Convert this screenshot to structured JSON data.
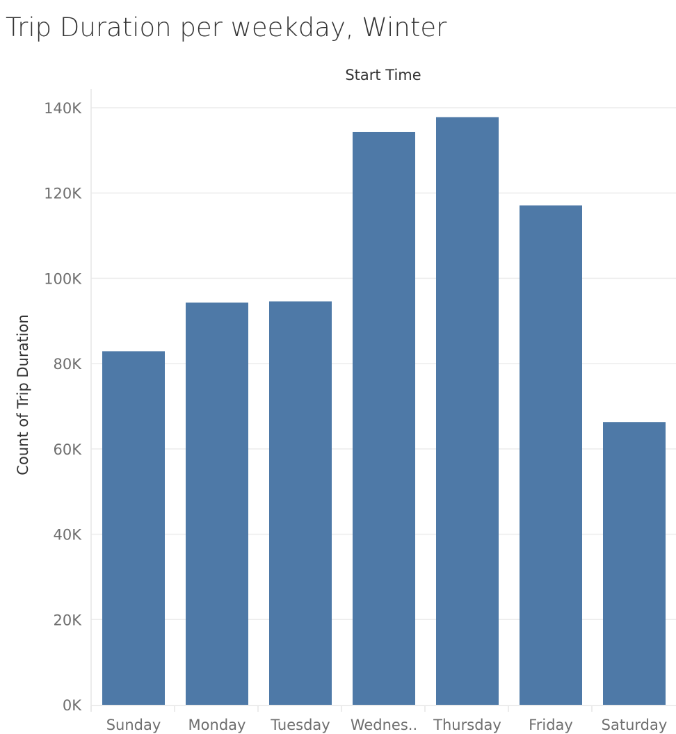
{
  "title": "Trip Duration per weekday, Winter",
  "chart_data": {
    "type": "bar",
    "title": "Trip Duration per weekday, Winter",
    "xlabel": "Start Time",
    "ylabel": "Count of Trip Duration",
    "categories": [
      "Sunday",
      "Monday",
      "Tuesday",
      "Wednes..",
      "Thursday",
      "Friday",
      "Saturday"
    ],
    "values": [
      82900,
      94300,
      94600,
      134300,
      137800,
      117100,
      66300
    ],
    "ylim": [
      0,
      140000
    ],
    "yticks": [
      0,
      20000,
      40000,
      60000,
      80000,
      100000,
      120000,
      140000
    ],
    "ytick_labels": [
      "0K",
      "20K",
      "40K",
      "60K",
      "80K",
      "100K",
      "120K",
      "140K"
    ],
    "grid": true,
    "legend": "none",
    "colors": {
      "bar": "#4e79a7",
      "grid": "#ececec",
      "axis_line": "#e6e6e6"
    }
  }
}
